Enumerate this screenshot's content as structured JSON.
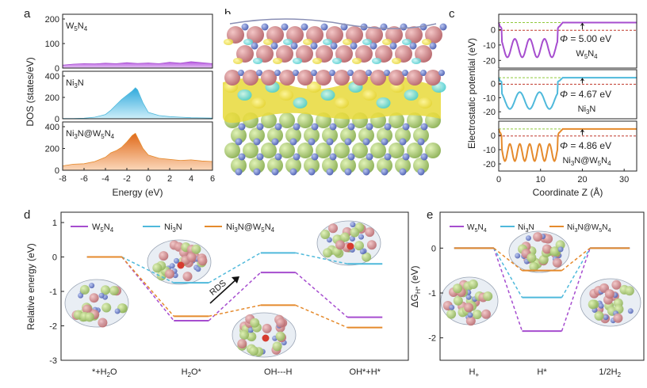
{
  "colors": {
    "W5N4": "#a64dcf",
    "Ni3N": "#4fb9db",
    "NiW": "#e58a2c",
    "dashed_red": "#c0392b",
    "dashed_green": "#8fc93a",
    "arrow": "#111111"
  },
  "panel_labels": {
    "a": "a",
    "b": "b",
    "c": "c",
    "d": "d",
    "e": "e"
  },
  "chart_data": [
    {
      "id": "a",
      "type": "area",
      "xlabel": "Energy (eV)",
      "ylabel": "DOS (states/eV)",
      "xlim": [
        -8,
        6
      ],
      "xticks": [
        "-8",
        "-6",
        "-4",
        "-2",
        "0",
        "2",
        "4",
        "6"
      ],
      "subplots": [
        {
          "name": "W5N4",
          "label_main": "W",
          "label_s1": "5",
          "label_mid": "N",
          "label_s2": "4",
          "label_end": "",
          "ylim": [
            0,
            200
          ],
          "yticks": [
            "0",
            "100",
            "200"
          ],
          "x": [
            -8,
            -7,
            -6,
            -5,
            -4,
            -3,
            -2,
            -1,
            0,
            1,
            2,
            3,
            4,
            5,
            6
          ],
          "y": [
            12,
            16,
            18,
            17,
            20,
            18,
            22,
            19,
            21,
            18,
            24,
            20,
            26,
            22,
            18
          ]
        },
        {
          "name": "Ni3N",
          "label_main": "Ni",
          "label_s1": "3",
          "label_mid": "N",
          "label_s2": "",
          "label_end": "",
          "ylim": [
            0,
            400
          ],
          "yticks": [
            "0",
            "200",
            "400"
          ],
          "x": [
            -8,
            -7,
            -6,
            -5,
            -4,
            -3.5,
            -3,
            -2.5,
            -2,
            -1.5,
            -1.2,
            -1,
            -0.5,
            0,
            1,
            2,
            3,
            4,
            5,
            6
          ],
          "y": [
            2,
            2,
            5,
            15,
            40,
            80,
            130,
            180,
            220,
            260,
            290,
            270,
            150,
            60,
            30,
            20,
            15,
            10,
            8,
            6
          ]
        },
        {
          "name": "Ni3N@W5N4",
          "label_main": "Ni",
          "label_s1": "3",
          "label_mid": "N@W",
          "label_s2": "5",
          "label_end": "N4",
          "ylim": [
            0,
            400
          ],
          "yticks": [
            "0",
            "200",
            "400"
          ],
          "x": [
            -8,
            -7,
            -6,
            -5,
            -4,
            -3.5,
            -3,
            -2.5,
            -2,
            -1.5,
            -1.2,
            -1,
            -0.5,
            0,
            1,
            2,
            3,
            4,
            5,
            6
          ],
          "y": [
            40,
            55,
            60,
            80,
            120,
            160,
            180,
            210,
            260,
            320,
            340,
            300,
            200,
            140,
            110,
            100,
            90,
            95,
            85,
            80
          ]
        }
      ]
    },
    {
      "id": "c",
      "type": "line",
      "xlabel": "Coordinate Z (Å)",
      "ylabel": "Electrostatic potential (eV)",
      "xlim": [
        0,
        33
      ],
      "xticks": [
        "0",
        "10",
        "20",
        "30"
      ],
      "subplots": [
        {
          "name": "W5N4",
          "phi": "= 5.00 eV",
          "phi_sym": "Φ",
          "ylim": [
            -25,
            10
          ],
          "yticks": [
            "0",
            "-10",
            "-20"
          ],
          "vac": 4.6,
          "fermi": -0.4,
          "wells": 4
        },
        {
          "name": "Ni3N",
          "phi": "= 4.67 eV",
          "phi_sym": "Φ",
          "ylim": [
            -25,
            10
          ],
          "yticks": [
            "0",
            "-10",
            "-20"
          ],
          "vac": 4.3,
          "fermi": -0.4,
          "wells": 3
        },
        {
          "name": "Ni3N@W5N4",
          "phi": "= 4.86 eV",
          "phi_sym": "Φ",
          "ylim": [
            -25,
            10
          ],
          "yticks": [
            "0",
            "-10",
            "-20"
          ],
          "vac": 4.5,
          "fermi": -0.4,
          "wells": 6
        }
      ]
    },
    {
      "id": "d",
      "type": "line",
      "ylabel": "Relative energy (eV)",
      "ylim": [
        -3,
        1.3
      ],
      "yticks": [
        "1",
        "0",
        "-1",
        "-2",
        "-3"
      ],
      "categories": [
        "*+H2O",
        "H2O*",
        "OH---H",
        "OH*+H*"
      ],
      "category_labels": [
        "*+H",
        "2",
        "O",
        "H",
        "2",
        "O*",
        "OH---H",
        "OH*+H*"
      ],
      "annotation": "RDS",
      "series": [
        {
          "name": "W5N4",
          "values": [
            0,
            -1.85,
            -0.45,
            -1.75
          ]
        },
        {
          "name": "Ni3N",
          "values": [
            0,
            -0.75,
            0.12,
            -0.2
          ]
        },
        {
          "name": "Ni3N@W5N4",
          "values": [
            0,
            -1.72,
            -1.4,
            -2.05
          ]
        }
      ]
    },
    {
      "id": "e",
      "type": "line",
      "ylabel": "ΔG",
      "ylabel_sub": "H*",
      "ylabel_end": " (eV)",
      "ylim": [
        -2.5,
        0.8
      ],
      "yticks": [
        "0",
        "-1",
        "-2"
      ],
      "categories": [
        "H+",
        "H*",
        "1/2H2"
      ],
      "series": [
        {
          "name": "W5N4",
          "values": [
            0,
            -1.85,
            0
          ]
        },
        {
          "name": "Ni3N",
          "values": [
            0,
            -1.1,
            0
          ]
        },
        {
          "name": "Ni3N@W5N4",
          "values": [
            0,
            -0.5,
            0
          ]
        }
      ]
    }
  ]
}
